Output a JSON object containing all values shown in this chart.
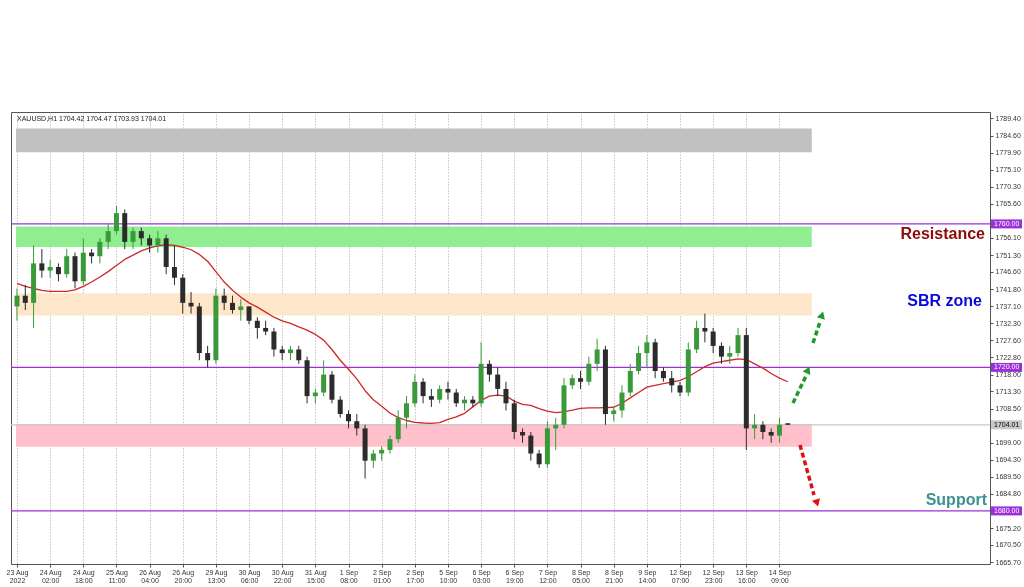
{
  "chart_data": {
    "type": "candlestick",
    "title": "XAUUSD,H1 1704.42 1704.47 1703.93 1704.01",
    "categories": [
      "23 Aug 2022",
      null,
      null,
      null,
      "24 Aug 02:00",
      null,
      null,
      null,
      "24 Aug 18:00",
      null,
      null,
      null,
      "25 Aug 11:00",
      null,
      null,
      null,
      "26 Aug 04:00",
      null,
      null,
      null,
      "26 Aug 20:00",
      null,
      null,
      null,
      "29 Aug 13:00",
      null,
      null,
      null,
      "30 Aug 06:00",
      null,
      null,
      null,
      "30 Aug 22:00",
      null,
      null,
      null,
      "31 Aug 15:00",
      null,
      null,
      null,
      "1 Sep 08:00",
      null,
      null,
      null,
      "2 Sep 01:00",
      null,
      null,
      null,
      "2 Sep 17:00",
      null,
      null,
      null,
      "5 Sep 10:00",
      null,
      null,
      null,
      "6 Sep 03:00",
      null,
      null,
      null,
      "6 Sep 19:00",
      null,
      null,
      null,
      "7 Sep 12:00",
      null,
      null,
      null,
      "8 Sep 05:00",
      null,
      null,
      null,
      "8 Sep 21:00",
      null,
      null,
      null,
      "9 Sep 14:00",
      null,
      null,
      null,
      "12 Sep 07:00",
      null,
      null,
      null,
      "12 Sep 23:00",
      null,
      null,
      null,
      "13 Sep 16:00",
      null,
      null,
      null,
      "14 Sep 09:00",
      null
    ],
    "ohlc": [
      [
        1737,
        1742,
        1733,
        1740
      ],
      [
        1740,
        1743,
        1736,
        1738
      ],
      [
        1738,
        1754,
        1731,
        1749
      ],
      [
        1749,
        1753,
        1745,
        1747
      ],
      [
        1747,
        1750,
        1745,
        1748
      ],
      [
        1748,
        1749,
        1744,
        1746
      ],
      [
        1746,
        1753,
        1745,
        1751
      ],
      [
        1751,
        1752,
        1742,
        1744
      ],
      [
        1744,
        1756,
        1743,
        1752
      ],
      [
        1752,
        1753,
        1749,
        1751
      ],
      [
        1751,
        1756,
        1749,
        1755
      ],
      [
        1755,
        1760,
        1753,
        1758
      ],
      [
        1758,
        1765,
        1757,
        1763
      ],
      [
        1763,
        1764,
        1753,
        1755
      ],
      [
        1755,
        1759,
        1753,
        1758
      ],
      [
        1758,
        1759,
        1754,
        1756
      ],
      [
        1756,
        1757,
        1752,
        1754
      ],
      [
        1754,
        1758,
        1752,
        1756
      ],
      [
        1756,
        1757,
        1746,
        1748
      ],
      [
        1748,
        1754,
        1743,
        1745
      ],
      [
        1745,
        1746,
        1735,
        1738
      ],
      [
        1738,
        1741,
        1735,
        1737
      ],
      [
        1737,
        1738,
        1722,
        1724
      ],
      [
        1724,
        1726,
        1720,
        1722
      ],
      [
        1722,
        1742,
        1721,
        1740
      ],
      [
        1740,
        1742,
        1736,
        1738
      ],
      [
        1738,
        1740,
        1735,
        1736
      ],
      [
        1736,
        1739,
        1733,
        1737
      ],
      [
        1737,
        1737,
        1732,
        1733
      ],
      [
        1733,
        1734,
        1728,
        1731
      ],
      [
        1731,
        1733,
        1729,
        1730
      ],
      [
        1730,
        1731,
        1723,
        1725
      ],
      [
        1725,
        1726,
        1722,
        1724
      ],
      [
        1724,
        1726,
        1722,
        1725
      ],
      [
        1725,
        1726,
        1721,
        1722
      ],
      [
        1722,
        1723,
        1710,
        1712
      ],
      [
        1712,
        1714,
        1710,
        1713
      ],
      [
        1713,
        1722,
        1712,
        1718
      ],
      [
        1718,
        1719,
        1710,
        1711
      ],
      [
        1711,
        1712,
        1706,
        1707
      ],
      [
        1707,
        1708,
        1703,
        1705
      ],
      [
        1705,
        1707,
        1701,
        1703
      ],
      [
        1703,
        1704,
        1689,
        1694
      ],
      [
        1694,
        1697,
        1692,
        1696
      ],
      [
        1696,
        1698,
        1694,
        1697
      ],
      [
        1697,
        1701,
        1696,
        1700
      ],
      [
        1700,
        1708,
        1699,
        1706
      ],
      [
        1706,
        1712,
        1703,
        1710
      ],
      [
        1710,
        1718,
        1709,
        1716
      ],
      [
        1716,
        1717,
        1710,
        1712
      ],
      [
        1712,
        1714,
        1709,
        1711
      ],
      [
        1711,
        1715,
        1710,
        1714
      ],
      [
        1714,
        1716,
        1711,
        1713
      ],
      [
        1713,
        1714,
        1709,
        1710
      ],
      [
        1710,
        1712,
        1708,
        1711
      ],
      [
        1711,
        1712,
        1709,
        1710
      ],
      [
        1710,
        1727,
        1709,
        1721
      ],
      [
        1721,
        1722,
        1716,
        1718
      ],
      [
        1718,
        1720,
        1712,
        1714
      ],
      [
        1714,
        1716,
        1708,
        1710
      ],
      [
        1710,
        1711,
        1700,
        1702
      ],
      [
        1702,
        1703,
        1699,
        1701
      ],
      [
        1701,
        1702,
        1694,
        1696
      ],
      [
        1696,
        1697,
        1692,
        1693
      ],
      [
        1693,
        1705,
        1692,
        1703
      ],
      [
        1703,
        1706,
        1697,
        1704
      ],
      [
        1704,
        1717,
        1703,
        1715
      ],
      [
        1715,
        1718,
        1714,
        1717
      ],
      [
        1717,
        1719,
        1714,
        1716
      ],
      [
        1716,
        1723,
        1715,
        1721
      ],
      [
        1721,
        1728,
        1719,
        1725
      ],
      [
        1725,
        1726,
        1704,
        1707
      ],
      [
        1707,
        1709,
        1705,
        1708
      ],
      [
        1708,
        1715,
        1706,
        1713
      ],
      [
        1713,
        1721,
        1712,
        1719
      ],
      [
        1719,
        1726,
        1718,
        1724
      ],
      [
        1724,
        1729,
        1720,
        1727
      ],
      [
        1727,
        1728,
        1717,
        1719
      ],
      [
        1719,
        1720,
        1716,
        1717
      ],
      [
        1717,
        1719,
        1713,
        1715
      ],
      [
        1715,
        1716,
        1712,
        1713
      ],
      [
        1713,
        1727,
        1712,
        1725
      ],
      [
        1725,
        1733,
        1724,
        1731
      ],
      [
        1731,
        1735,
        1727,
        1730
      ],
      [
        1730,
        1731,
        1724,
        1726
      ],
      [
        1726,
        1727,
        1721,
        1723
      ],
      [
        1723,
        1726,
        1721,
        1724
      ],
      [
        1724,
        1731,
        1723,
        1729
      ],
      [
        1729,
        1731,
        1697,
        1703
      ],
      [
        1703,
        1707,
        1700,
        1704
      ],
      [
        1704,
        1705,
        1700,
        1702
      ],
      [
        1702,
        1703,
        1699,
        1701
      ],
      [
        1701,
        1706,
        1699,
        1704
      ],
      [
        1704.42,
        1704.47,
        1703.93,
        1704.01
      ]
    ],
    "colors": [
      "#3a9a3a",
      "#2b2b2b",
      "#3a9a3a",
      "#2b2b2b",
      "#3a9a3a",
      "#2b2b2b",
      "#3a9a3a",
      "#2b2b2b",
      "#3a9a3a",
      "#2b2b2b",
      "#3a9a3a",
      "#3a9a3a",
      "#3a9a3a",
      "#2b2b2b",
      "#3a9a3a",
      "#2b2b2b",
      "#2b2b2b",
      "#3a9a3a",
      "#2b2b2b",
      "#2b2b2b",
      "#2b2b2b",
      "#2b2b2b",
      "#2b2b2b",
      "#2b2b2b",
      "#3a9a3a",
      "#2b2b2b",
      "#2b2b2b",
      "#3a9a3a",
      "#2b2b2b",
      "#2b2b2b",
      "#2b2b2b",
      "#2b2b2b",
      "#2b2b2b",
      "#3a9a3a",
      "#2b2b2b",
      "#2b2b2b",
      "#3a9a3a",
      "#3a9a3a",
      "#2b2b2b",
      "#2b2b2b",
      "#2b2b2b",
      "#2b2b2b",
      "#2b2b2b",
      "#3a9a3a",
      "#3a9a3a",
      "#3a9a3a",
      "#3a9a3a",
      "#3a9a3a",
      "#3a9a3a",
      "#2b2b2b",
      "#2b2b2b",
      "#3a9a3a",
      "#2b2b2b",
      "#2b2b2b",
      "#3a9a3a",
      "#2b2b2b",
      "#3a9a3a",
      "#2b2b2b",
      "#2b2b2b",
      "#2b2b2b",
      "#2b2b2b",
      "#2b2b2b",
      "#2b2b2b",
      "#2b2b2b",
      "#3a9a3a",
      "#3a9a3a",
      "#3a9a3a",
      "#3a9a3a",
      "#2b2b2b",
      "#3a9a3a",
      "#3a9a3a",
      "#2b2b2b",
      "#3a9a3a",
      "#3a9a3a",
      "#3a9a3a",
      "#3a9a3a",
      "#3a9a3a",
      "#2b2b2b",
      "#2b2b2b",
      "#2b2b2b",
      "#2b2b2b",
      "#3a9a3a",
      "#3a9a3a",
      "#2b2b2b",
      "#2b2b2b",
      "#2b2b2b",
      "#3a9a3a",
      "#3a9a3a",
      "#2b2b2b",
      "#3a9a3a",
      "#2b2b2b",
      "#2b2b2b",
      "#3a9a3a",
      "#2b2b2b"
    ],
    "series": [
      {
        "type": "line",
        "color": "#d02828",
        "values": [
          1743.4,
          1742.6,
          1742.0,
          1741.5,
          1741.2,
          1741.2,
          1741.2,
          1741.6,
          1742.6,
          1743.8,
          1745.2,
          1746.7,
          1748.4,
          1750.1,
          1751.3,
          1752.5,
          1753.3,
          1753.9,
          1754.2,
          1754.0,
          1753.5,
          1752.8,
          1751.5,
          1749.6,
          1746.7,
          1743.8,
          1741.5,
          1739.6,
          1738.0,
          1736.8,
          1735.4,
          1734.0,
          1733.0,
          1732.3,
          1731.3,
          1730.4,
          1729.2,
          1727.6,
          1725.0,
          1722.0,
          1719.5,
          1716.8,
          1713.5,
          1711.0,
          1709.2,
          1707.3,
          1706.0,
          1705.2,
          1704.7,
          1704.5,
          1704.4,
          1704.6,
          1705.5,
          1706.2,
          1707.2,
          1709.0,
          1710.8,
          1712.0,
          1712.3,
          1712.0,
          1710.6,
          1709.7,
          1709.4,
          1708.5,
          1707.8,
          1707.4,
          1707.6,
          1708.1,
          1708.6,
          1708.7,
          1708.7,
          1708.8,
          1708.9,
          1710.0,
          1711.5,
          1713.0,
          1714.5,
          1715.0,
          1715.5,
          1715.9,
          1716.4,
          1717.4,
          1718.8,
          1720.2,
          1721.2,
          1721.6,
          1722.0,
          1722.4,
          1722.2,
          1721.0,
          1719.8,
          1718.3,
          1717.0,
          1716.0
        ]
      }
    ],
    "ylim": [
      1665.2,
      1791.2
    ],
    "yticks": [
      {
        "value": 1789.4,
        "label": "1789.40"
      },
      {
        "value": 1784.6,
        "label": "1784.60"
      },
      {
        "value": 1779.9,
        "label": "1779.90"
      },
      {
        "value": 1775.1,
        "label": "1775.10"
      },
      {
        "value": 1770.3,
        "label": "1770.30"
      },
      {
        "value": 1765.6,
        "label": "1765.60"
      },
      {
        "value": 1756.1,
        "label": "1756.10"
      },
      {
        "value": 1751.3,
        "label": "1751.30"
      },
      {
        "value": 1746.6,
        "label": "1746.60"
      },
      {
        "value": 1741.8,
        "label": "1741.80"
      },
      {
        "value": 1737.1,
        "label": "1737.10"
      },
      {
        "value": 1732.3,
        "label": "1732.30"
      },
      {
        "value": 1727.6,
        "label": "1727.60"
      },
      {
        "value": 1722.8,
        "label": "1722.80"
      },
      {
        "value": 1718,
        "label": "1718.00"
      },
      {
        "value": 1713.3,
        "label": "1713.30"
      },
      {
        "value": 1708.5,
        "label": "1708.50"
      },
      {
        "value": 1699,
        "label": "1699.00"
      },
      {
        "value": 1694.3,
        "label": "1694.30"
      },
      {
        "value": 1689.5,
        "label": "1689.50"
      },
      {
        "value": 1684.8,
        "label": "1684.80"
      },
      {
        "value": 1675.2,
        "label": "1675.20"
      },
      {
        "value": 1670.5,
        "label": "1670.50"
      },
      {
        "value": 1665.7,
        "label": "1665.70"
      }
    ],
    "bands": [
      {
        "axis": "y",
        "from": 1780.0,
        "to": 1786.6,
        "color": "#c0c0c0"
      },
      {
        "axis": "y",
        "from": 1753.6,
        "to": 1759.3,
        "color": "#90ee90"
      },
      {
        "axis": "y",
        "from": 1734.5,
        "to": 1740.7,
        "color": "#fde6c9"
      },
      {
        "axis": "y",
        "from": 1697.9,
        "to": 1704.2,
        "color": "#ffc0cb"
      }
    ],
    "ref_lines": [
      {
        "axis": "y",
        "value": 1760,
        "label": "1760.00",
        "color": "#9b30d9"
      },
      {
        "axis": "y",
        "value": 1720,
        "label": "1720.00",
        "color": "#9b30d9"
      },
      {
        "axis": "y",
        "value": 1680,
        "label": "1680.00",
        "color": "#9b30d9"
      },
      {
        "axis": "y",
        "value": 1704.01,
        "label": "1704.01",
        "color": "#c8c8c8"
      }
    ],
    "annotations": [
      "Resistance",
      "SBR zone",
      "Support"
    ],
    "grid": "x"
  }
}
